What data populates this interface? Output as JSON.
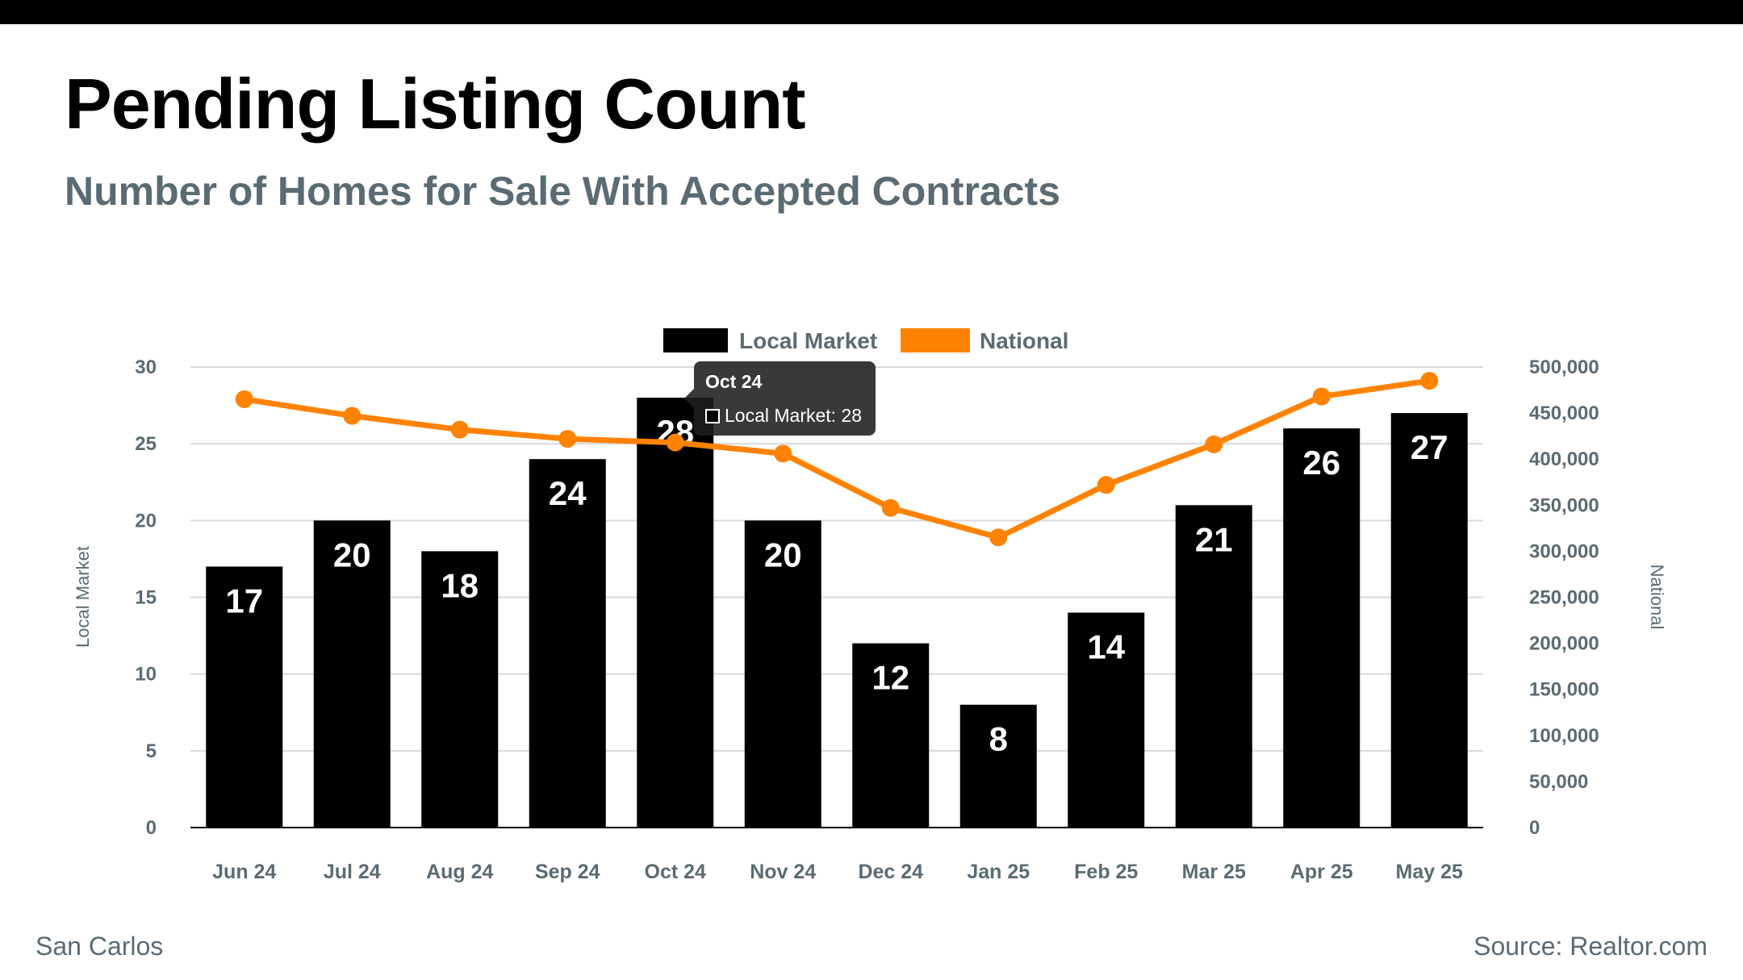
{
  "header": {
    "title": "Pending Listing Count",
    "subtitle": "Number of Homes for Sale With Accepted Contracts"
  },
  "footer": {
    "location": "San Carlos",
    "source": "Source: Realtor.com"
  },
  "colors": {
    "bar": "#000000",
    "line": "#ff8200",
    "grid": "#d9d9d9",
    "axis_text": "#5b6b73",
    "legend_text": "#5b6b73"
  },
  "tooltip": {
    "title": "Oct 24",
    "label": "Local Market: 28"
  },
  "chart_data": {
    "type": "bar",
    "categories": [
      "Jun 24",
      "Jul 24",
      "Aug 24",
      "Sep 24",
      "Oct 24",
      "Nov 24",
      "Dec 24",
      "Jan 25",
      "Feb 25",
      "Mar 25",
      "Apr 25",
      "May 25"
    ],
    "series": [
      {
        "name": "Local Market",
        "type": "bar",
        "axis": "left",
        "values": [
          17,
          20,
          18,
          24,
          28,
          20,
          12,
          8,
          14,
          21,
          26,
          27
        ]
      },
      {
        "name": "National",
        "type": "line",
        "axis": "right",
        "values": [
          465000,
          447000,
          432000,
          422000,
          418000,
          406000,
          347000,
          315000,
          372000,
          416000,
          468000,
          485000
        ]
      }
    ],
    "ylabel": "Local Market",
    "ylabel_right": "National",
    "ylim": [
      0,
      30
    ],
    "ylim_right": [
      0,
      500000
    ],
    "yticks": [
      0,
      5,
      10,
      15,
      20,
      25,
      30
    ],
    "yticks_right_labels": [
      "0",
      "50,000",
      "100,000",
      "150,000",
      "200,000",
      "250,000",
      "300,000",
      "350,000",
      "400,000",
      "450,000",
      "500,000"
    ],
    "legend": [
      "Local Market",
      "National"
    ],
    "legend_position": "top-center",
    "grid": true
  }
}
